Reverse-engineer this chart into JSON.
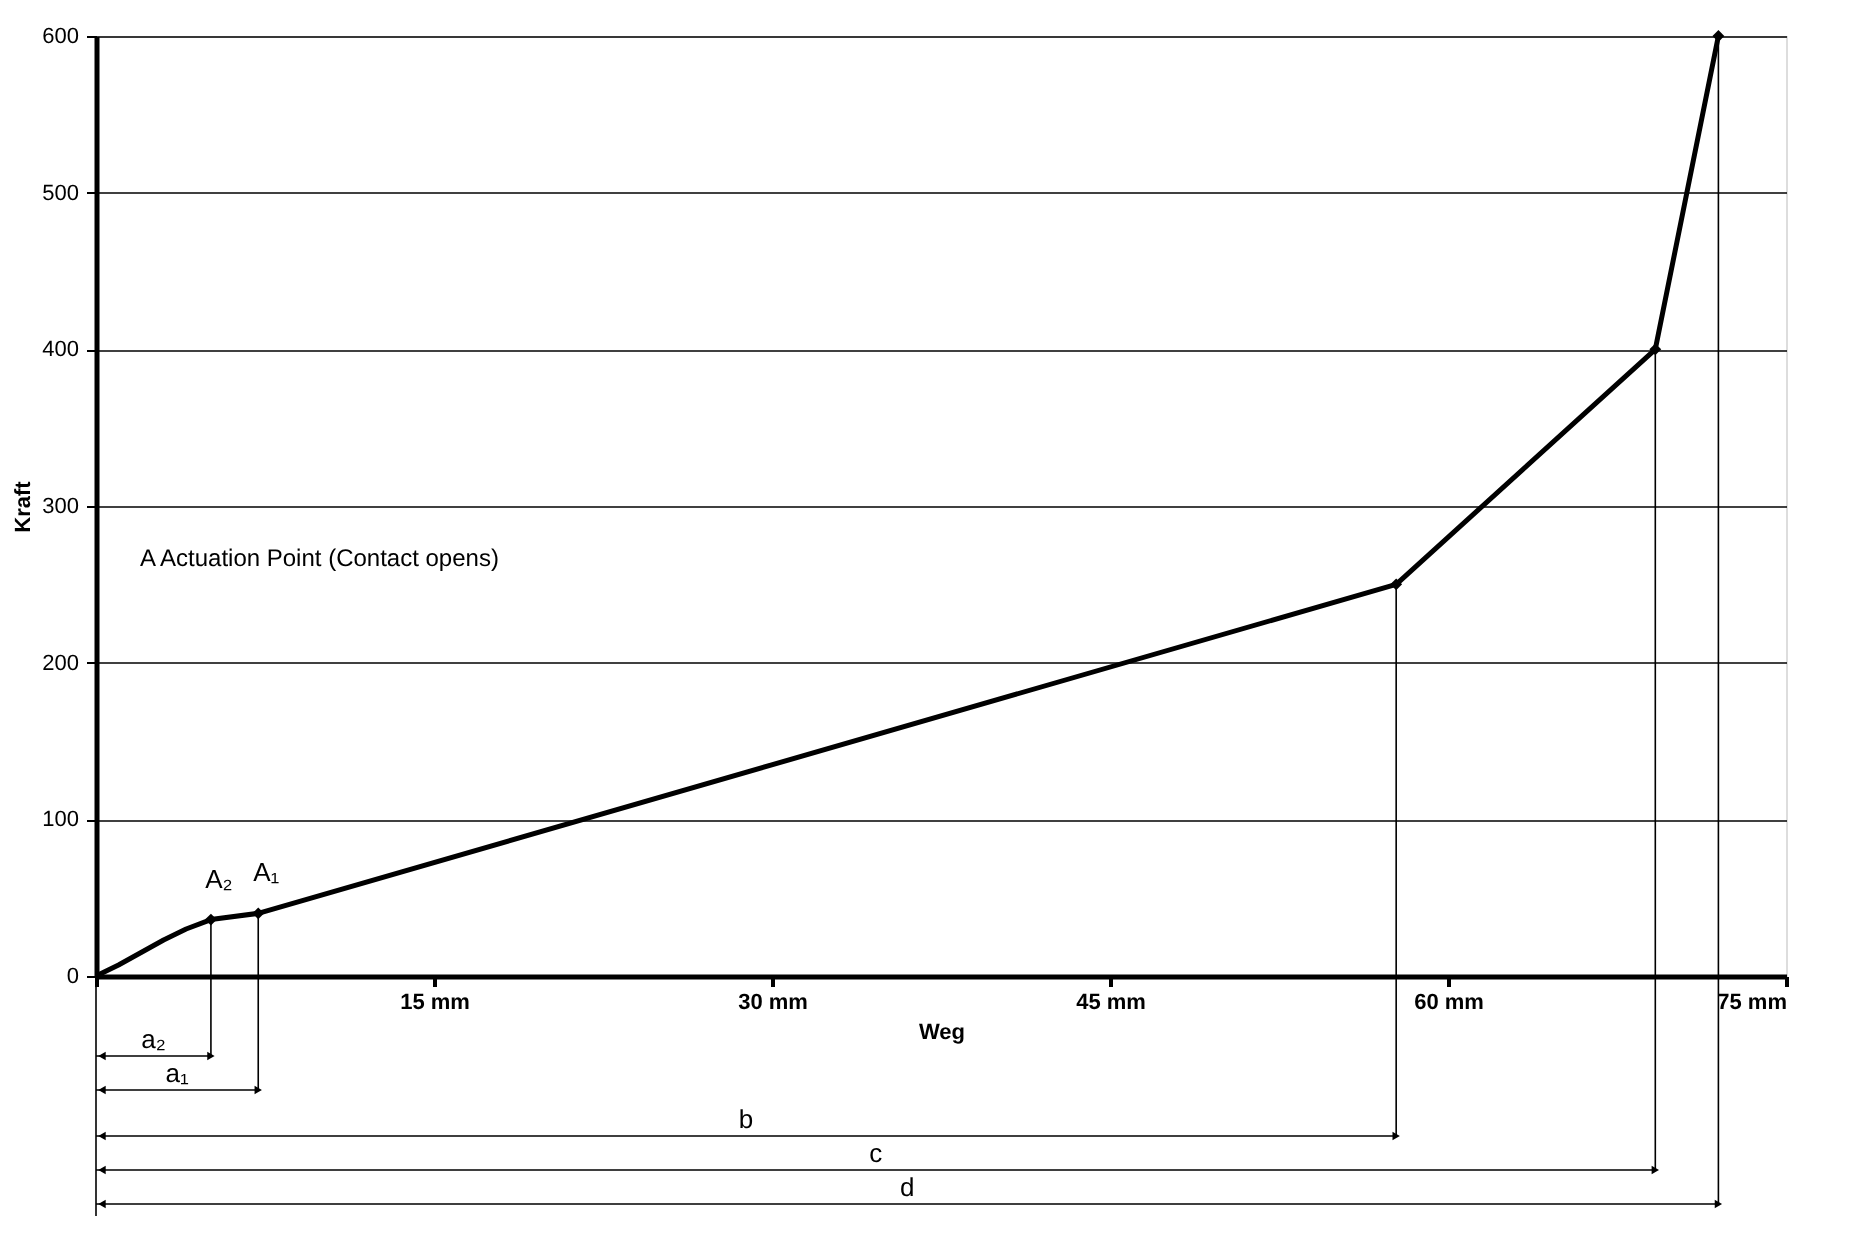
{
  "chart_data": {
    "type": "line",
    "xlabel": "Weg",
    "ylabel": "Kraft",
    "series": [
      {
        "color": "#000000",
        "x": [
          0,
          1,
          2,
          3,
          4,
          5.1,
          7.2,
          57.7,
          69.2,
          72.0
        ],
        "values": [
          0,
          7,
          15,
          23,
          30,
          36,
          40,
          250,
          400,
          600
        ],
        "marker": "none"
      },
      {
        "type": "scatter",
        "color": "#000000",
        "x": [
          5.1,
          7.2,
          57.7,
          69.2,
          72.0
        ],
        "values": [
          36,
          40,
          250,
          400,
          600
        ],
        "marker": "diamond"
      }
    ],
    "xlim": [
      0,
      75
    ],
    "xticks": [
      {
        "value": 0,
        "label": null
      },
      {
        "value": 15,
        "label": "15 mm"
      },
      {
        "value": 30,
        "label": "30 mm"
      },
      {
        "value": 45,
        "label": "45 mm"
      },
      {
        "value": 60,
        "label": "60 mm"
      },
      {
        "value": 75,
        "label": "75 mm"
      }
    ],
    "ylim": [
      0,
      600
    ],
    "yticks": [
      0,
      100,
      200,
      300,
      400,
      500,
      600
    ],
    "grid": "y",
    "ref_lines": [
      {
        "axis": "x",
        "value": 57.7,
        "label": "b"
      },
      {
        "axis": "x",
        "value": 69.2,
        "label": "c"
      },
      {
        "axis": "x",
        "value": 72.0,
        "label": "d"
      }
    ],
    "annotations": [
      "A    Actuation Point (Contact opens)",
      "a₂",
      "a₁",
      {
        "text": "A₂",
        "x": 5.1,
        "y": 36
      },
      {
        "text": "A₁",
        "x": 7.2,
        "y": 40
      }
    ]
  }
}
